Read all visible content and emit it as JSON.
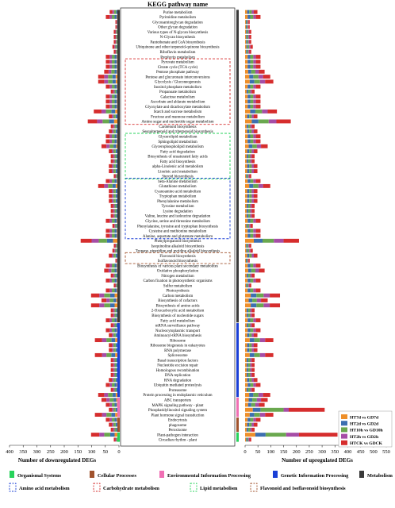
{
  "chart_data": {
    "type": "bar",
    "title": "KEGG pathway name",
    "left_axis_label": "Number of downregulated DEGs",
    "right_axis_label": "Number of upregulated DEGs",
    "left_ticks": [
      400,
      350,
      300,
      250,
      200,
      150,
      100,
      50,
      0
    ],
    "right_ticks": [
      0,
      50,
      100,
      150,
      200,
      250,
      300,
      350,
      400,
      450,
      500,
      550
    ],
    "xlim_left": [
      0,
      400
    ],
    "xlim_right": [
      0,
      550
    ],
    "series_names": [
      "HT7d vs GD7d",
      "HT2d vs GD2d",
      "HT10h vs GD10h",
      "HT2h vs GD2h",
      "HTCK vs GDCK"
    ],
    "series_colors": [
      "#ee8f2a",
      "#3d6fb0",
      "#6aa84f",
      "#a64da6",
      "#d62d2d"
    ],
    "pathways": [
      "Purine metabolism",
      "Pyrimidine metabolism",
      "Glycosaminoglycan degradation",
      "Other glycan degradation",
      "Various types of N-glycan biosynthesis",
      "N-Glycan biosynthesis",
      "Pantothenate and CoA biosynthesis",
      "Ubiquinone and other terpenoid-quinone biosynthesis",
      "Riboflavin metabolism",
      "Porphyrin metabolism",
      "Pyruvate metabolism",
      "Citrate cycle (TCA cycle)",
      "Pentose phosphate pathway",
      "Pentose and glucuronate interconversions",
      "Glycolysis / Gluconeogenesis",
      "Inositol phosphate metabolism",
      "Propanoate metabolism",
      "Galactose metabolism",
      "Ascorbate and aldarate metabolism",
      "Glyoxylate and dicarboxylate metabolism",
      "Starch and sucrose metabolism",
      "Fructose and mannose metabolism",
      "Amino sugar and nucleotide sugar metabolism",
      "Carotenoid biosynthesis",
      "Sesquiterpenoid and triterpenoid biosynthesis",
      "Glycerolipid metabolism",
      "Sphingolipid metabolism",
      "Glycerophospholipid metabolism",
      "Fatty acid degradation",
      "Biosynthesis of unsaturated fatty acids",
      "Fatty acid biosynthesis",
      "alpha-Linolenic acid metabolism",
      "Linoleic acid metabolism",
      "Steroid biosynthesis",
      "beta-Alanine metabolism",
      "Glutathione metabolism",
      "Cyanoamino acid metabolism",
      "Tryptophan metabolism",
      "Phenylalanine metabolism",
      "Tyrosine metabolism",
      "Lysine degradation",
      "Valine, leucine and isoleucine degradation",
      "Glycine, serine and threonine metabolism",
      "Phenylalanine, tyrosine and tryptophan biosynthesis",
      "Cysteine and methionine metabolism",
      "Alanine, aspartate and glutamate metabolism",
      "Phenylpropanoid biosynthesis",
      "Isoquinoline alkaloid biosynthesis",
      "Tropane, piperidine and pyridine alkaloid biosynthesis",
      "Flavonoid biosynthesis",
      "Isoflavonoid biosynthesis",
      "Biosynthesis of various plant secondary metabolites",
      "Oxidative phosphorylation",
      "Nitrogen metabolism",
      "Carbon fixation in photosynthetic organisms",
      "Sulfur metabolism",
      "Photosynthesis",
      "Carbon metabolism",
      "Biosynthesis of cofactors",
      "Biosynthesis of amino acids",
      "2-Oxocarboxylic acid metabolism",
      "Biosynthesis of nucleotide sugars",
      "Fatty acid metabolism",
      "mRNA surveillance pathway",
      "Nucleocytoplasmic transport",
      "Aminoacyl-tRNA biosynthesis",
      "Ribosome",
      "Ribosome biogenesis in eukaryotes",
      "RNA polymerase",
      "Spliceosome",
      "Basal transcription factors",
      "Nucleotide excision repair",
      "Homologous recombination",
      "DNA replication",
      "RNA degradation",
      "Ubiquitin mediated proteolysis",
      "Proteasome",
      "Protein processing in endoplasmic reticulum",
      "ABC transporters",
      "MAPK signaling pathway - plant",
      "Phosphatidylinositol signaling system",
      "Plant hormone signal transduction",
      "Endocytosis",
      "phagosome",
      "Peroxisome",
      "Plant-pathogen interaction",
      "Circadian rhythm - plant"
    ],
    "down_values": {
      "HT7d vs GD7d": [
        5,
        8,
        2,
        2,
        3,
        3,
        3,
        4,
        3,
        8,
        8,
        8,
        8,
        12,
        12,
        8,
        5,
        8,
        8,
        8,
        14,
        6,
        18,
        5,
        6,
        8,
        8,
        10,
        6,
        5,
        5,
        6,
        6,
        3,
        8,
        12,
        6,
        6,
        6,
        5,
        5,
        5,
        8,
        4,
        8,
        8,
        22,
        3,
        4,
        6,
        2,
        8,
        8,
        5,
        8,
        3,
        8,
        16,
        10,
        16,
        5,
        5,
        8,
        5,
        8,
        6,
        14,
        6,
        6,
        14,
        5,
        5,
        5,
        5,
        6,
        8,
        5,
        12,
        10,
        8,
        6,
        14,
        8,
        6,
        5,
        16,
        3
      ],
      "HT2d vs GD2d": [
        5,
        8,
        2,
        2,
        3,
        3,
        3,
        4,
        3,
        8,
        8,
        8,
        8,
        12,
        12,
        8,
        5,
        8,
        8,
        8,
        14,
        6,
        18,
        5,
        6,
        8,
        8,
        10,
        6,
        5,
        5,
        6,
        6,
        3,
        8,
        12,
        6,
        6,
        6,
        5,
        5,
        5,
        8,
        4,
        8,
        8,
        22,
        3,
        4,
        6,
        2,
        8,
        8,
        5,
        8,
        3,
        8,
        16,
        10,
        16,
        5,
        5,
        8,
        5,
        8,
        6,
        14,
        6,
        6,
        14,
        5,
        5,
        5,
        5,
        6,
        8,
        5,
        12,
        10,
        8,
        6,
        14,
        8,
        6,
        5,
        16,
        3
      ],
      "HT10h vs GD10h": [
        8,
        10,
        3,
        3,
        4,
        4,
        4,
        5,
        4,
        10,
        10,
        10,
        12,
        16,
        16,
        10,
        6,
        10,
        10,
        10,
        20,
        8,
        24,
        6,
        8,
        10,
        10,
        14,
        8,
        6,
        6,
        8,
        8,
        4,
        10,
        16,
        8,
        8,
        8,
        6,
        6,
        6,
        10,
        5,
        10,
        10,
        30,
        4,
        5,
        8,
        3,
        10,
        12,
        6,
        10,
        4,
        10,
        22,
        14,
        22,
        6,
        6,
        10,
        6,
        10,
        8,
        18,
        8,
        8,
        18,
        6,
        6,
        6,
        6,
        8,
        10,
        6,
        16,
        14,
        10,
        8,
        18,
        10,
        8,
        6,
        22,
        4
      ],
      "HT2h vs GD2h": [
        6,
        8,
        2,
        2,
        3,
        3,
        3,
        4,
        3,
        8,
        8,
        8,
        10,
        14,
        14,
        8,
        5,
        8,
        8,
        8,
        16,
        6,
        20,
        5,
        6,
        8,
        8,
        12,
        6,
        5,
        5,
        6,
        6,
        3,
        8,
        14,
        6,
        6,
        6,
        5,
        5,
        5,
        8,
        4,
        8,
        8,
        26,
        3,
        4,
        6,
        2,
        8,
        10,
        5,
        8,
        3,
        8,
        18,
        12,
        18,
        5,
        5,
        8,
        5,
        8,
        6,
        16,
        6,
        6,
        16,
        5,
        5,
        5,
        5,
        6,
        8,
        5,
        14,
        12,
        8,
        6,
        16,
        8,
        6,
        5,
        18,
        3
      ],
      "HTCK vs GDCK": [
        10,
        14,
        4,
        4,
        6,
        6,
        6,
        7,
        6,
        14,
        14,
        14,
        16,
        22,
        22,
        14,
        9,
        14,
        14,
        14,
        28,
        11,
        34,
        9,
        11,
        14,
        14,
        18,
        11,
        9,
        9,
        11,
        11,
        6,
        14,
        22,
        11,
        11,
        11,
        9,
        9,
        9,
        14,
        7,
        14,
        14,
        40,
        6,
        7,
        11,
        4,
        14,
        16,
        9,
        14,
        6,
        14,
        30,
        18,
        30,
        9,
        9,
        14,
        9,
        14,
        11,
        26,
        11,
        11,
        26,
        9,
        9,
        9,
        9,
        11,
        14,
        9,
        22,
        18,
        14,
        11,
        26,
        14,
        11,
        9,
        30,
        6
      ]
    },
    "up_values": {
      "HT7d vs GD7d": [
        8,
        10,
        3,
        3,
        4,
        4,
        4,
        5,
        4,
        10,
        10,
        10,
        12,
        16,
        18,
        10,
        6,
        10,
        10,
        10,
        20,
        8,
        26,
        6,
        8,
        10,
        10,
        14,
        8,
        6,
        6,
        8,
        8,
        4,
        10,
        16,
        8,
        8,
        8,
        6,
        6,
        6,
        10,
        5,
        10,
        10,
        34,
        4,
        5,
        8,
        3,
        10,
        12,
        6,
        10,
        4,
        10,
        22,
        14,
        22,
        6,
        6,
        10,
        6,
        10,
        8,
        18,
        8,
        8,
        18,
        6,
        6,
        6,
        6,
        8,
        10,
        6,
        16,
        14,
        12,
        30,
        18,
        10,
        8,
        6,
        40,
        4
      ],
      "HT2d vs GD2d": [
        8,
        10,
        3,
        3,
        4,
        4,
        4,
        5,
        4,
        10,
        10,
        10,
        12,
        16,
        18,
        10,
        6,
        10,
        10,
        10,
        20,
        8,
        26,
        6,
        8,
        10,
        10,
        14,
        8,
        6,
        6,
        8,
        8,
        4,
        10,
        16,
        8,
        8,
        8,
        6,
        6,
        6,
        10,
        5,
        10,
        10,
        34,
        4,
        5,
        8,
        3,
        10,
        12,
        6,
        10,
        4,
        10,
        22,
        14,
        22,
        6,
        6,
        10,
        6,
        10,
        8,
        18,
        8,
        8,
        18,
        6,
        6,
        6,
        6,
        8,
        10,
        6,
        16,
        14,
        12,
        30,
        18,
        10,
        8,
        6,
        40,
        4
      ],
      "HT10h vs GD10h": [
        10,
        12,
        4,
        4,
        5,
        5,
        5,
        6,
        5,
        12,
        12,
        12,
        16,
        20,
        22,
        12,
        8,
        12,
        12,
        12,
        26,
        10,
        40,
        8,
        10,
        12,
        12,
        18,
        10,
        8,
        8,
        10,
        10,
        5,
        12,
        20,
        10,
        10,
        10,
        8,
        8,
        8,
        12,
        6,
        12,
        12,
        44,
        5,
        6,
        10,
        4,
        12,
        16,
        8,
        12,
        5,
        12,
        28,
        18,
        28,
        8,
        8,
        12,
        8,
        12,
        10,
        22,
        10,
        10,
        22,
        8,
        8,
        8,
        8,
        10,
        12,
        8,
        20,
        18,
        16,
        90,
        22,
        12,
        10,
        8,
        80,
        5
      ],
      "HT2h vs GD2h": [
        8,
        10,
        3,
        3,
        4,
        4,
        4,
        5,
        4,
        10,
        10,
        10,
        14,
        18,
        20,
        10,
        6,
        10,
        10,
        10,
        22,
        8,
        30,
        6,
        8,
        10,
        10,
        16,
        8,
        6,
        6,
        8,
        8,
        4,
        10,
        18,
        8,
        8,
        8,
        6,
        6,
        6,
        10,
        5,
        10,
        10,
        38,
        4,
        5,
        8,
        3,
        10,
        14,
        6,
        10,
        4,
        10,
        24,
        16,
        24,
        6,
        6,
        10,
        6,
        10,
        8,
        20,
        8,
        8,
        20,
        6,
        6,
        6,
        6,
        8,
        10,
        6,
        18,
        16,
        14,
        20,
        20,
        10,
        8,
        6,
        50,
        4
      ],
      "HTCK vs GDCK": [
        14,
        18,
        5,
        5,
        7,
        7,
        7,
        9,
        7,
        18,
        18,
        18,
        22,
        28,
        32,
        18,
        11,
        18,
        18,
        18,
        36,
        14,
        56,
        11,
        14,
        18,
        18,
        26,
        14,
        11,
        11,
        14,
        14,
        7,
        18,
        28,
        14,
        14,
        14,
        11,
        11,
        11,
        18,
        9,
        18,
        18,
        60,
        7,
        9,
        14,
        5,
        18,
        22,
        11,
        18,
        7,
        18,
        40,
        26,
        40,
        11,
        11,
        18,
        11,
        18,
        14,
        32,
        14,
        14,
        32,
        11,
        11,
        11,
        11,
        14,
        18,
        11,
        28,
        26,
        22,
        140,
        32,
        18,
        14,
        11,
        150,
        7
      ]
    },
    "categories": [
      {
        "name": "Organismal Systems",
        "color": "#27d35b"
      },
      {
        "name": "Cellular Processes",
        "color": "#a0522d"
      },
      {
        "name": "Environmental Information Processing",
        "color": "#f06fb4"
      },
      {
        "name": "Genetic Information Processing",
        "color": "#1a3fd6"
      },
      {
        "name": "Metabolism",
        "color": "#3a3a3a"
      }
    ],
    "subgroups": [
      {
        "name": "Amino acid metabolism",
        "color": "#1a3fd6",
        "start": 34,
        "end": 45
      },
      {
        "name": "Carbohydrate metabolism",
        "color": "#d62d2d",
        "start": 10,
        "end": 22
      },
      {
        "name": "Lipid metabolism",
        "color": "#27d35b",
        "start": 25,
        "end": 33
      },
      {
        "name": "Flavonoid and Isoflavonoid biosynthesis",
        "color": "#a0522d",
        "start": 49,
        "end": 50
      }
    ],
    "category_ranges": [
      {
        "color": "#3a3a3a",
        "start": 0,
        "end": 62
      },
      {
        "color": "#1a3fd6",
        "start": 63,
        "end": 77
      },
      {
        "color": "#f06fb4",
        "start": 78,
        "end": 81
      },
      {
        "color": "#a0522d",
        "start": 82,
        "end": 84
      },
      {
        "color": "#27d35b",
        "start": 85,
        "end": 86
      }
    ]
  }
}
